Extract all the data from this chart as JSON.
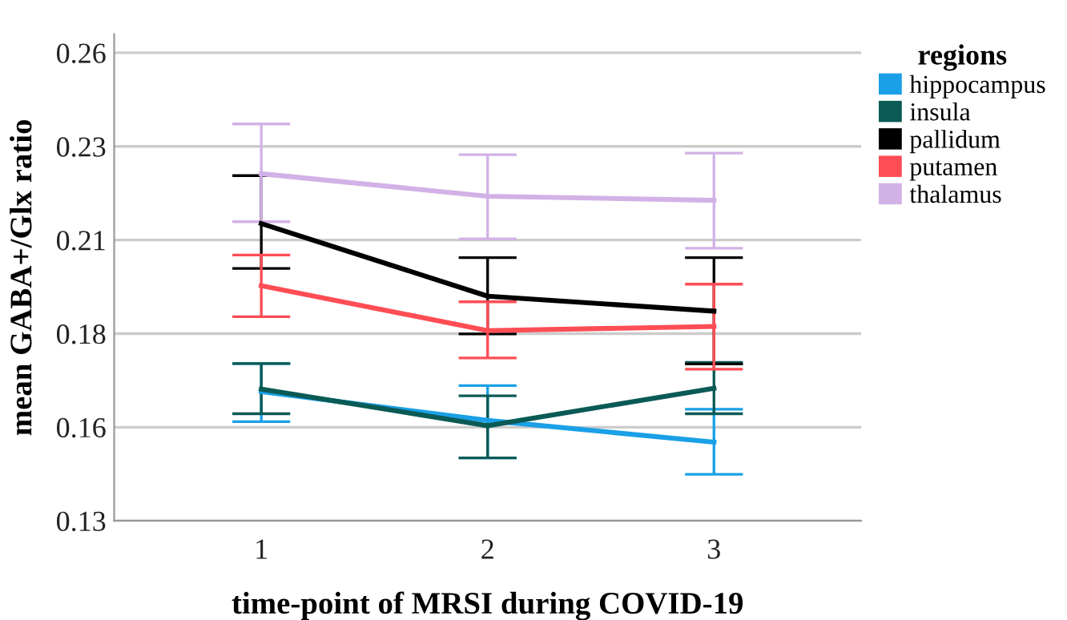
{
  "chart_data": {
    "type": "line",
    "xlabel": "time-point of MRSI during COVID-19",
    "ylabel": "mean GABA+/Glx ratio",
    "legend_title": "regions",
    "x": [
      1,
      2,
      3
    ],
    "xlim": [
      0.35,
      3.65
    ],
    "xticks": [
      1,
      2,
      3
    ],
    "ylim": [
      0.13,
      0.26
    ],
    "yticks": [
      0.13,
      {
        "value": 0.155,
        "label": "0.16"
      },
      0.18,
      {
        "value": 0.205,
        "label": "0.21"
      },
      0.23,
      {
        "value": 0.255,
        "label": "0.26"
      }
    ],
    "grid": "y",
    "legend": "right",
    "marker": "none",
    "line_style": "solid",
    "series": [
      {
        "name": "hippocampus",
        "color": "#1aa0e6",
        "values": [
          0.1645,
          0.1568,
          0.151
        ],
        "errors": [
          [
            0.1565,
            0.172
          ],
          [
            0.1468,
            0.1661
          ],
          [
            0.1424,
            0.1598
          ]
        ]
      },
      {
        "name": "insula",
        "color": "#0a5a55",
        "values": [
          0.1652,
          0.1554,
          0.1654
        ],
        "errors": [
          [
            0.1586,
            0.172
          ],
          [
            0.1468,
            0.1634
          ],
          [
            0.1586,
            0.1723
          ]
        ]
      },
      {
        "name": "pallidum",
        "color": "#000000",
        "values": [
          0.2094,
          0.19,
          0.186
        ],
        "errors": [
          [
            0.1974,
            0.2222
          ],
          [
            0.1799,
            0.2003
          ],
          [
            0.1719,
            0.2003
          ]
        ]
      },
      {
        "name": "putamen",
        "color": "#ff4d55",
        "values": [
          0.1928,
          0.1808,
          0.1819
        ],
        "errors": [
          [
            0.1845,
            0.201
          ],
          [
            0.1735,
            0.1885
          ],
          [
            0.1705,
            0.1932
          ]
        ]
      },
      {
        "name": "thalamus",
        "color": "#d2b2e6",
        "values": [
          0.2227,
          0.2167,
          0.2156
        ],
        "errors": [
          [
            0.2099,
            0.236
          ],
          [
            0.2053,
            0.2278
          ],
          [
            0.2028,
            0.2282
          ]
        ]
      }
    ]
  }
}
